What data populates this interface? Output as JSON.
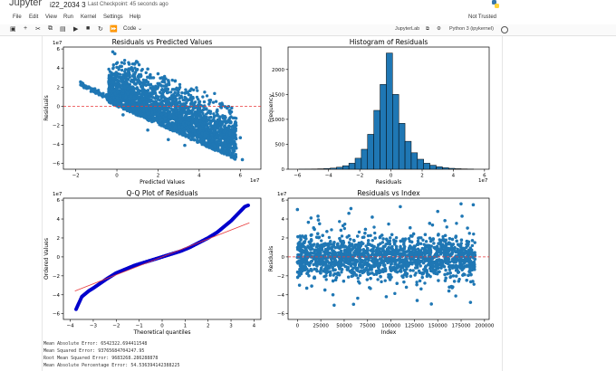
{
  "app": {
    "logo": "Jupyter",
    "notebook_name": "i22_2034 3",
    "checkpoint": "Last Checkpoint: 45 seconds ago",
    "trusted": "Not Trusted"
  },
  "menu": [
    "File",
    "Edit",
    "View",
    "Run",
    "Kernel",
    "Settings",
    "Help"
  ],
  "toolbar": {
    "cell_type": "Code",
    "jupyterlab": "JupyterLab",
    "kernel": "Python 3 (ipykernel)",
    "icons": [
      "save-icon",
      "add-icon",
      "cut-icon",
      "copy-icon",
      "paste-icon",
      "run-icon",
      "stop-icon",
      "restart-icon",
      "fast-forward-icon"
    ]
  },
  "plots": [
    {
      "title": "Residuals vs Predicted Values",
      "xlabel": "Predicted Values",
      "ylabel": "Residuals",
      "x_scale_label": "1e7",
      "y_scale_label": "1e7",
      "xticks": [
        "−2",
        "0",
        "2",
        "4",
        "6"
      ],
      "yticks": [
        "6",
        "4",
        "2",
        "0",
        "−2",
        "−4",
        "−6"
      ]
    },
    {
      "title": "Histogram of Residuals",
      "xlabel": "Residuals",
      "ylabel": "Frequency",
      "x_scale_label": "1e7",
      "xticks": [
        "−6",
        "−4",
        "−2",
        "0",
        "2",
        "4",
        "6"
      ],
      "yticks": [
        "2000",
        "1500",
        "1000",
        "500",
        "0"
      ]
    },
    {
      "title": "Q-Q Plot of Residuals",
      "xlabel": "Theoretical quantiles",
      "ylabel": "Ordered Values",
      "y_scale_label": "1e7",
      "xticks": [
        "−4",
        "−3",
        "−2",
        "−1",
        "0",
        "1",
        "2",
        "3",
        "4"
      ],
      "yticks": [
        "6",
        "4",
        "2",
        "0",
        "−2",
        "−4",
        "−6"
      ]
    },
    {
      "title": "Residuals vs Index",
      "xlabel": "Index",
      "ylabel": "Residuals",
      "y_scale_label": "1e7",
      "xticks": [
        "0",
        "25000",
        "50000",
        "75000",
        "100000",
        "125000",
        "150000",
        "175000",
        "200000"
      ],
      "yticks": [
        "6",
        "4",
        "2",
        "0",
        "−2",
        "−4",
        "−6"
      ]
    }
  ],
  "chart_data": [
    {
      "type": "scatter",
      "title": "Residuals vs Predicted Values",
      "xlabel": "Predicted Values",
      "ylabel": "Residuals",
      "xlim": [
        -2.6,
        7.0
      ],
      "ylim": [
        -6.6,
        6.2
      ],
      "x_multiplier": "1e7",
      "y_multiplier": "1e7",
      "reference_line_y": 0,
      "points_note": "dense cloud between x≈-0.5 and x≈6, y≈-4.5 to 5.5; lower edge follows y≈-x",
      "points": [
        [
          -1.7,
          2.3
        ],
        [
          -1.5,
          2.1
        ],
        [
          -1.0,
          1.6
        ],
        [
          -0.5,
          1.2
        ],
        [
          0.0,
          0.9
        ],
        [
          0.5,
          3.4
        ],
        [
          1.0,
          4.6
        ],
        [
          -0.2,
          5.7
        ],
        [
          -0.1,
          5.5
        ],
        [
          0.6,
          4.4
        ],
        [
          1.5,
          3.9
        ],
        [
          2.0,
          3.4
        ],
        [
          2.5,
          2.7
        ],
        [
          3.0,
          1.8
        ],
        [
          3.5,
          1.2
        ],
        [
          4.0,
          0.4
        ],
        [
          4.5,
          -0.6
        ],
        [
          5.0,
          -1.1
        ],
        [
          5.5,
          -1.7
        ],
        [
          6.0,
          -3.3
        ],
        [
          6.1,
          -5.6
        ],
        [
          5.8,
          -4.4
        ],
        [
          4.8,
          -3.2
        ],
        [
          1.5,
          -2.5
        ],
        [
          2.5,
          -3.5
        ],
        [
          3.3,
          -4.1
        ],
        [
          4.1,
          -3.6
        ],
        [
          5.1,
          -3.9
        ],
        [
          5.5,
          -3.0
        ],
        [
          0.3,
          -0.9
        ]
      ]
    },
    {
      "type": "bar",
      "title": "Histogram of Residuals",
      "xlabel": "Residuals",
      "ylabel": "Frequency",
      "x_multiplier": "1e7",
      "ylim": [
        0,
        2450
      ],
      "bin_edges": [
        -5.9,
        -5.5,
        -5.1,
        -4.7,
        -4.3,
        -3.9,
        -3.5,
        -3.1,
        -2.7,
        -2.3,
        -1.9,
        -1.5,
        -1.1,
        -0.7,
        -0.3,
        0.1,
        0.5,
        0.9,
        1.3,
        1.7,
        2.1,
        2.5,
        2.9,
        3.3,
        3.7,
        4.1,
        4.5,
        4.9,
        5.3
      ],
      "values": [
        2,
        3,
        5,
        8,
        14,
        22,
        40,
        70,
        120,
        220,
        400,
        700,
        1180,
        1700,
        2330,
        1500,
        920,
        560,
        330,
        200,
        120,
        80,
        50,
        30,
        18,
        10,
        6,
        3
      ]
    },
    {
      "type": "scatter",
      "title": "Q-Q Plot of Residuals",
      "xlabel": "Theoretical quantiles",
      "ylabel": "Ordered Values",
      "y_multiplier": "1e7",
      "xlim": [
        -4.3,
        4.3
      ],
      "ylim": [
        -6.6,
        6.2
      ],
      "fit_line": [
        [
          -3.8,
          -3.6
        ],
        [
          3.8,
          3.6
        ]
      ],
      "points": [
        [
          -3.8,
          -5.8
        ],
        [
          -3.5,
          -4.2
        ],
        [
          -3.2,
          -3.6
        ],
        [
          -3.0,
          -3.3
        ],
        [
          -2.7,
          -2.8
        ],
        [
          -2.4,
          -2.3
        ],
        [
          -2.0,
          -1.7
        ],
        [
          -1.6,
          -1.3
        ],
        [
          -1.2,
          -0.9
        ],
        [
          -0.8,
          -0.6
        ],
        [
          -0.4,
          -0.3
        ],
        [
          0.0,
          0.0
        ],
        [
          0.4,
          0.3
        ],
        [
          0.8,
          0.6
        ],
        [
          1.2,
          1.0
        ],
        [
          1.6,
          1.5
        ],
        [
          2.0,
          2.0
        ],
        [
          2.4,
          2.6
        ],
        [
          2.7,
          3.2
        ],
        [
          3.0,
          3.8
        ],
        [
          3.2,
          4.3
        ],
        [
          3.4,
          4.8
        ],
        [
          3.6,
          5.3
        ],
        [
          3.8,
          5.5
        ]
      ]
    },
    {
      "type": "scatter",
      "title": "Residuals vs Index",
      "xlabel": "Index",
      "ylabel": "Residuals",
      "y_multiplier": "1e7",
      "xlim": [
        -10000,
        205000
      ],
      "ylim": [
        -6.6,
        6.2
      ],
      "reference_line_y": 0,
      "points_note": "dense band from index 0 to ~190000 with y mostly between -2.5 and 2.5, outliers to ±5.5",
      "points": [
        [
          0,
          5.0
        ],
        [
          10000,
          -3.3
        ],
        [
          22000,
          4.3
        ],
        [
          38000,
          -4.0
        ],
        [
          55000,
          4.6
        ],
        [
          60000,
          -5.0
        ],
        [
          80000,
          4.2
        ],
        [
          95000,
          -4.2
        ],
        [
          110000,
          5.3
        ],
        [
          128000,
          -4.6
        ],
        [
          150000,
          4.8
        ],
        [
          162000,
          -3.6
        ],
        [
          176000,
          4.3
        ],
        [
          185000,
          -4.8
        ],
        [
          188000,
          5.5
        ]
      ]
    }
  ],
  "output_lines": [
    "Mean Absolute Error: 6542322.694411548",
    "Mean Squared Error: 93765684704247.95",
    "Root Mean Squared Error: 9683268.286288878",
    "Mean Absolute Percentage Error: 54.536394142388225"
  ]
}
